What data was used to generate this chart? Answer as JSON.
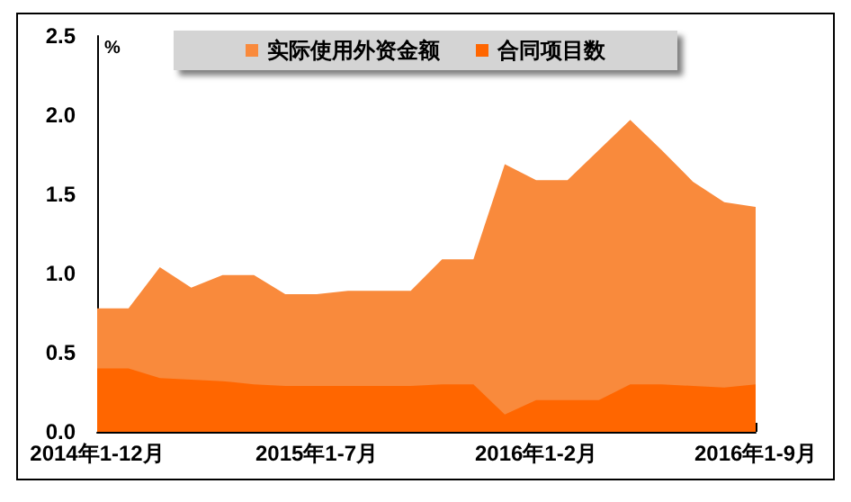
{
  "chart_data": {
    "type": "area",
    "ylabel": "%",
    "categories": [
      "2014年1-12月",
      null,
      null,
      null,
      null,
      null,
      null,
      "2015年1-7月",
      null,
      null,
      null,
      null,
      null,
      null,
      "2016年1-2月",
      null,
      null,
      null,
      null,
      null,
      null,
      "2016年1-9月"
    ],
    "series": [
      {
        "name": "实际使用外资金额",
        "color": "#f98a3c",
        "values": [
          0.78,
          0.78,
          1.04,
          0.91,
          0.99,
          0.99,
          0.87,
          0.87,
          0.89,
          0.89,
          0.89,
          1.09,
          1.09,
          1.69,
          1.59,
          1.59,
          1.78,
          1.97,
          1.78,
          1.58,
          1.45,
          1.42
        ]
      },
      {
        "name": "合同项目数",
        "color": "#ff6600",
        "values": [
          0.4,
          0.4,
          0.34,
          0.33,
          0.32,
          0.3,
          0.29,
          0.29,
          0.29,
          0.29,
          0.29,
          0.3,
          0.3,
          0.11,
          0.2,
          0.2,
          0.2,
          0.3,
          0.3,
          0.29,
          0.28,
          0.3
        ]
      }
    ],
    "ylim": [
      0,
      2.5
    ],
    "yticks": [
      {
        "value": 0,
        "label": "0.0"
      },
      {
        "value": 0.5,
        "label": "0.5"
      },
      {
        "value": 1,
        "label": "1.0"
      },
      {
        "value": 1.5,
        "label": "1.5"
      },
      {
        "value": 2,
        "label": "2.0"
      },
      {
        "value": 2.5,
        "label": "2.5"
      }
    ],
    "grid": false,
    "legend": "top",
    "marker": "none"
  }
}
